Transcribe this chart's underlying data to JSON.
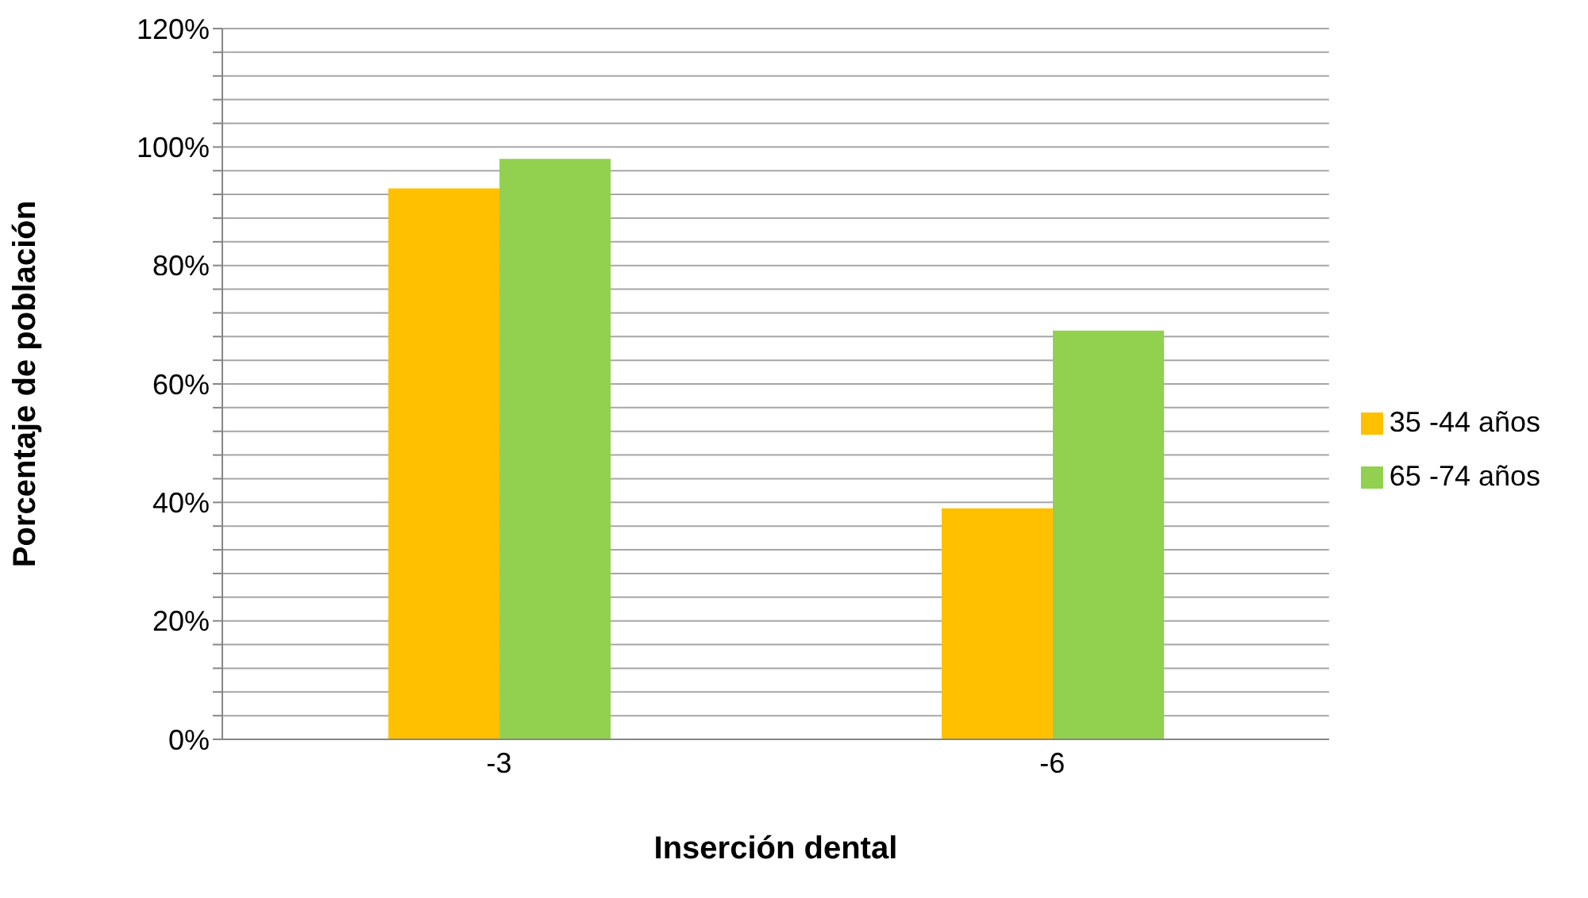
{
  "chart_data": {
    "type": "bar",
    "xlabel": "Inserción dental",
    "ylabel": "Porcentaje de población",
    "categories": [
      "-3",
      "-6"
    ],
    "series": [
      {
        "name": "35 -44 años",
        "color": "#ffc000",
        "values": [
          93,
          39
        ]
      },
      {
        "name": "65 -74 años",
        "color": "#92d050",
        "values": [
          98,
          69
        ]
      }
    ],
    "ylim": [
      0,
      120
    ],
    "yticks": [
      {
        "value": 0,
        "label": "0%"
      },
      {
        "value": 4,
        "label": null
      },
      {
        "value": 8,
        "label": null
      },
      {
        "value": 12,
        "label": null
      },
      {
        "value": 16,
        "label": null
      },
      {
        "value": 20,
        "label": "20%"
      },
      {
        "value": 24,
        "label": null
      },
      {
        "value": 28,
        "label": null
      },
      {
        "value": 32,
        "label": null
      },
      {
        "value": 36,
        "label": null
      },
      {
        "value": 40,
        "label": "40%"
      },
      {
        "value": 44,
        "label": null
      },
      {
        "value": 48,
        "label": null
      },
      {
        "value": 52,
        "label": null
      },
      {
        "value": 56,
        "label": null
      },
      {
        "value": 60,
        "label": "60%"
      },
      {
        "value": 64,
        "label": null
      },
      {
        "value": 68,
        "label": null
      },
      {
        "value": 72,
        "label": null
      },
      {
        "value": 76,
        "label": null
      },
      {
        "value": 80,
        "label": "80%"
      },
      {
        "value": 84,
        "label": null
      },
      {
        "value": 88,
        "label": null
      },
      {
        "value": 92,
        "label": null
      },
      {
        "value": 96,
        "label": null
      },
      {
        "value": 100,
        "label": "100%"
      },
      {
        "value": 104,
        "label": null
      },
      {
        "value": 108,
        "label": null
      },
      {
        "value": 112,
        "label": null
      },
      {
        "value": 116,
        "label": null
      },
      {
        "value": 120,
        "label": "120%"
      }
    ],
    "grid": "y",
    "legend": "right"
  }
}
